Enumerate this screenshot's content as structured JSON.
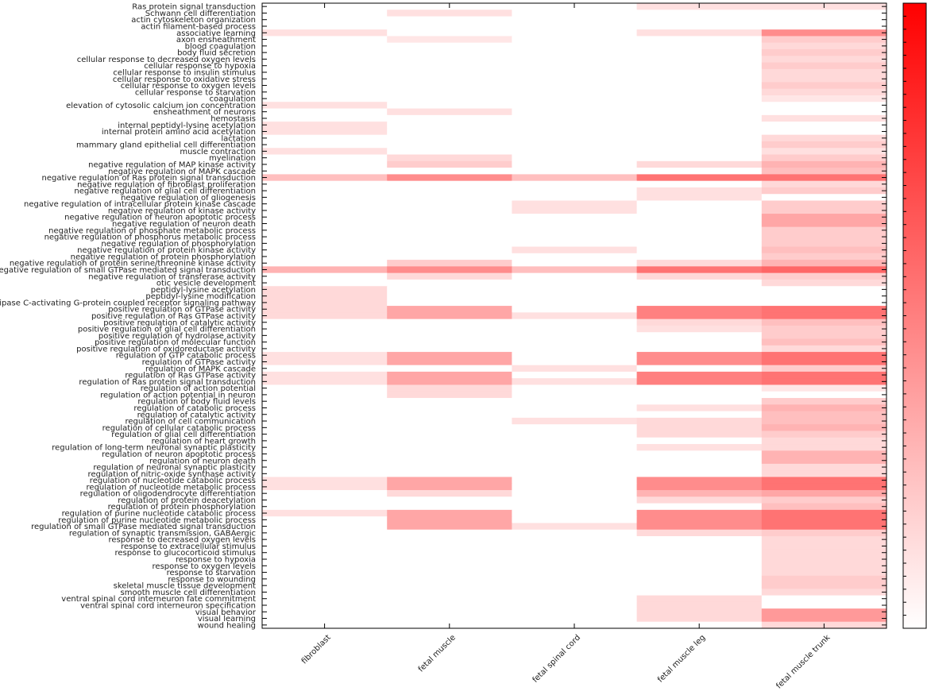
{
  "chart_data": {
    "type": "heatmap",
    "title": "",
    "xlabel": "",
    "ylabel": "",
    "color_min": "#ffffff",
    "color_max": "#ff0000",
    "columns": [
      "fibroblast",
      "fetal muscle",
      "fetal spinal cord",
      "fetal muscle leg",
      "fetal muscle trunk"
    ],
    "rows": [
      "Ras protein signal transduction",
      "Schwann cell differentiation",
      "actin cytoskeleton organization",
      "actin filament-based process",
      "associative learning",
      "axon ensheathment",
      "blood coagulation",
      "body fluid secretion",
      "cellular response to decreased oxygen levels",
      "cellular response to hypoxia",
      "cellular response to insulin stimulus",
      "cellular response to oxidative stress",
      "cellular response to oxygen levels",
      "cellular response to starvation",
      "coagulation",
      "elevation of cytosolic calcium ion concentration",
      "ensheathment of neurons",
      "hemostasis",
      "internal peptidyl-lysine acetylation",
      "internal protein amino acid acetylation",
      "lactation",
      "mammary gland epithelial cell differentiation",
      "muscle contraction",
      "myelination",
      "negative regulation of MAP kinase activity",
      "negative regulation of MAPK cascade",
      "negative regulation of Ras protein signal transduction",
      "negative regulation of fibroblast proliferation",
      "negative regulation of glial cell differentiation",
      "negative regulation of gliogenesis",
      "negative regulation of intracellular protein kinase cascade",
      "negative regulation of kinase activity",
      "negative regulation of neuron apoptotic process",
      "negative regulation of neuron death",
      "negative regulation of phosphate metabolic process",
      "negative regulation of phosphorus metabolic process",
      "negative regulation of phosphorylation",
      "negative regulation of protein kinase activity",
      "negative regulation of protein phosphorylation",
      "negative regulation of protein serine/threonine kinase activity",
      "negative regulation of small GTPase mediated signal transduction",
      "negative regulation of transferase activity",
      "otic vesicle development",
      "peptidyl-lysine acetylation",
      "peptidyl-lysine modification",
      "phospholipase C-activating G-protein coupled receptor signaling pathway",
      "positive regulation of GTPase activity",
      "positive regulation of Ras GTPase activity",
      "positive regulation of catalytic activity",
      "positive regulation of glial cell differentiation",
      "positive regulation of hydrolase activity",
      "positive regulation of molecular function",
      "positive regulation of oxidoreductase activity",
      "regulation of GTP catabolic process",
      "regulation of GTPase activity",
      "regulation of MAPK cascade",
      "regulation of Ras GTPase activity",
      "regulation of Ras protein signal transduction",
      "regulation of action potential",
      "regulation of action potential in neuron",
      "regulation of body fluid levels",
      "regulation of catabolic process",
      "regulation of catalytic activity",
      "regulation of cell communication",
      "regulation of cellular catabolic process",
      "regulation of glial cell differentiation",
      "regulation of heart growth",
      "regulation of long-term neuronal synaptic plasticity",
      "regulation of neuron apoptotic process",
      "regulation of neuron death",
      "regulation of neuronal synaptic plasticity",
      "regulation of nitric-oxide synthase activity",
      "regulation of nucleotide catabolic process",
      "regulation of nucleotide metabolic process",
      "regulation of oligodendrocyte differentiation",
      "regulation of protein deacetylation",
      "regulation of protein phosphorylation",
      "regulation of purine nucleotide catabolic process",
      "regulation of purine nucleotide metabolic process",
      "regulation of small GTPase mediated signal transduction",
      "regulation of synaptic transmission, GABAergic",
      "response to decreased oxygen levels",
      "response to extracellular stimulus",
      "response to glucocorticoid stimulus",
      "response to hypoxia",
      "response to oxygen levels",
      "response to starvation",
      "response to wounding",
      "skeletal muscle tissue development",
      "smooth muscle cell differentiation",
      "ventral spinal cord interneuron fate commitment",
      "ventral spinal cord interneuron specification",
      "visual behavior",
      "visual learning",
      "wound healing"
    ],
    "values": [
      [
        0,
        0,
        0,
        0.12,
        0.12
      ],
      [
        0,
        0.12,
        0,
        0,
        0
      ],
      [
        0,
        0,
        0,
        0,
        0
      ],
      [
        0,
        0,
        0,
        0,
        0
      ],
      [
        0.12,
        0,
        0,
        0.12,
        0.45
      ],
      [
        0,
        0.1,
        0,
        0,
        0.2
      ],
      [
        0,
        0,
        0,
        0,
        0.15
      ],
      [
        0,
        0,
        0,
        0,
        0.2
      ],
      [
        0,
        0,
        0,
        0,
        0.15
      ],
      [
        0,
        0,
        0,
        0,
        0.2
      ],
      [
        0,
        0,
        0,
        0,
        0.15
      ],
      [
        0,
        0,
        0,
        0,
        0.15
      ],
      [
        0,
        0,
        0,
        0,
        0.2
      ],
      [
        0,
        0,
        0,
        0,
        0.15
      ],
      [
        0,
        0,
        0,
        0,
        0.1
      ],
      [
        0.12,
        0,
        0,
        0,
        0
      ],
      [
        0,
        0.12,
        0,
        0,
        0
      ],
      [
        0,
        0,
        0,
        0,
        0.12
      ],
      [
        0.12,
        0,
        0,
        0,
        0
      ],
      [
        0.12,
        0,
        0,
        0,
        0
      ],
      [
        0,
        0,
        0,
        0,
        0.15
      ],
      [
        0,
        0,
        0,
        0,
        0.2
      ],
      [
        0.12,
        0,
        0,
        0,
        0.12
      ],
      [
        0,
        0.15,
        0,
        0,
        0.2
      ],
      [
        0,
        0.2,
        0,
        0.15,
        0.3
      ],
      [
        0,
        0,
        0,
        0,
        0.25
      ],
      [
        0.25,
        0.45,
        0.25,
        0.55,
        0.55
      ],
      [
        0,
        0,
        0,
        0,
        0.15
      ],
      [
        0,
        0,
        0,
        0.12,
        0.2
      ],
      [
        0,
        0,
        0,
        0.12,
        0
      ],
      [
        0,
        0,
        0.12,
        0,
        0.2
      ],
      [
        0,
        0,
        0.12,
        0,
        0.2
      ],
      [
        0,
        0,
        0,
        0,
        0.35
      ],
      [
        0,
        0,
        0,
        0,
        0.35
      ],
      [
        0,
        0,
        0,
        0,
        0.2
      ],
      [
        0,
        0,
        0,
        0,
        0.2
      ],
      [
        0,
        0,
        0,
        0,
        0.2
      ],
      [
        0,
        0,
        0.12,
        0,
        0.25
      ],
      [
        0,
        0,
        0,
        0,
        0.2
      ],
      [
        0,
        0.2,
        0,
        0.15,
        0.3
      ],
      [
        0.3,
        0.45,
        0.25,
        0.55,
        0.6
      ],
      [
        0,
        0.15,
        0,
        0.15,
        0.2
      ],
      [
        0,
        0,
        0,
        0,
        0.15
      ],
      [
        0.15,
        0,
        0,
        0,
        0
      ],
      [
        0.15,
        0,
        0,
        0,
        0
      ],
      [
        0.15,
        0,
        0,
        0,
        0
      ],
      [
        0.15,
        0.35,
        0,
        0.5,
        0.55
      ],
      [
        0.15,
        0.35,
        0.12,
        0.5,
        0.55
      ],
      [
        0,
        0,
        0,
        0.15,
        0.25
      ],
      [
        0,
        0,
        0,
        0.12,
        0.2
      ],
      [
        0,
        0,
        0,
        0,
        0.2
      ],
      [
        0,
        0,
        0,
        0,
        0.25
      ],
      [
        0,
        0,
        0,
        0,
        0.15
      ],
      [
        0.12,
        0.35,
        0,
        0.45,
        0.55
      ],
      [
        0.12,
        0.35,
        0,
        0.45,
        0.55
      ],
      [
        0,
        0,
        0.12,
        0,
        0.2
      ],
      [
        0.12,
        0.35,
        0,
        0.5,
        0.55
      ],
      [
        0.12,
        0.35,
        0.12,
        0.5,
        0.55
      ],
      [
        0,
        0.15,
        0,
        0,
        0.1
      ],
      [
        0,
        0.15,
        0,
        0,
        0
      ],
      [
        0,
        0,
        0,
        0,
        0.2
      ],
      [
        0,
        0,
        0,
        0.12,
        0.3
      ],
      [
        0,
        0,
        0,
        0,
        0.25
      ],
      [
        0,
        0,
        0.12,
        0.15,
        0.25
      ],
      [
        0,
        0,
        0,
        0.15,
        0.3
      ],
      [
        0,
        0,
        0,
        0.15,
        0.2
      ],
      [
        0,
        0,
        0,
        0,
        0.15
      ],
      [
        0,
        0,
        0,
        0.12,
        0.15
      ],
      [
        0,
        0,
        0,
        0,
        0.3
      ],
      [
        0,
        0,
        0,
        0,
        0.3
      ],
      [
        0,
        0,
        0,
        0,
        0.15
      ],
      [
        0,
        0,
        0,
        0,
        0.15
      ],
      [
        0.12,
        0.35,
        0,
        0.45,
        0.55
      ],
      [
        0.12,
        0.35,
        0,
        0.45,
        0.55
      ],
      [
        0,
        0.15,
        0,
        0.3,
        0.35
      ],
      [
        0,
        0,
        0,
        0.15,
        0.2
      ],
      [
        0,
        0,
        0,
        0,
        0.25
      ],
      [
        0.12,
        0.35,
        0,
        0.45,
        0.55
      ],
      [
        0,
        0.35,
        0,
        0.45,
        0.55
      ],
      [
        0,
        0.35,
        0.12,
        0.45,
        0.55
      ],
      [
        0,
        0,
        0,
        0.15,
        0.2
      ],
      [
        0,
        0,
        0,
        0,
        0.15
      ],
      [
        0,
        0,
        0,
        0,
        0.15
      ],
      [
        0,
        0,
        0,
        0,
        0.15
      ],
      [
        0,
        0,
        0,
        0,
        0.15
      ],
      [
        0,
        0,
        0,
        0,
        0.15
      ],
      [
        0,
        0,
        0,
        0,
        0.15
      ],
      [
        0,
        0,
        0,
        0,
        0.2
      ],
      [
        0,
        0,
        0,
        0,
        0.2
      ],
      [
        0,
        0,
        0,
        0,
        0.15
      ],
      [
        0,
        0,
        0,
        0.15,
        0
      ],
      [
        0,
        0,
        0,
        0.15,
        0
      ],
      [
        0,
        0,
        0,
        0.15,
        0.4
      ],
      [
        0,
        0,
        0,
        0.15,
        0.4
      ],
      [
        0,
        0,
        0,
        0,
        0.15
      ]
    ],
    "grid": false,
    "colorbar": "right"
  }
}
